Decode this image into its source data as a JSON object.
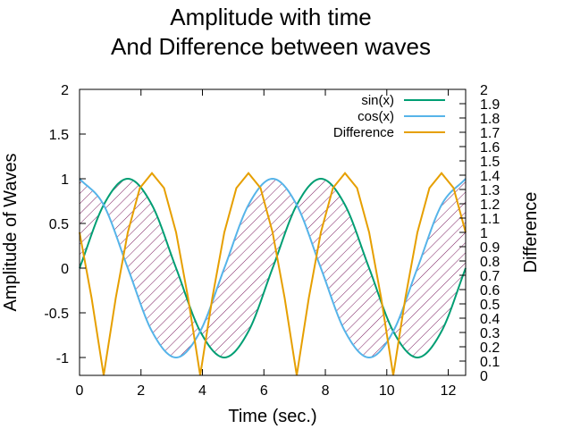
{
  "chart_data": {
    "type": "line",
    "title": "Amplitude with time",
    "subtitle": "And Difference between waves",
    "xlabel": "Time (sec.)",
    "ylabel": "Amplitude of Waves",
    "y2label": "Difference",
    "xlim": [
      0,
      12.566
    ],
    "ylim": [
      -1.2,
      2
    ],
    "y2lim": [
      0,
      2
    ],
    "x_ticks": [
      "0",
      "2",
      "4",
      "6",
      "8",
      "10",
      "12"
    ],
    "y_ticks": [
      "2",
      "1.5",
      "1",
      "0.5",
      "0",
      "-0.5",
      "-1"
    ],
    "y2_ticks": [
      "2",
      "1.9",
      "1.8",
      "1.7",
      "1.6",
      "1.5",
      "1.4",
      "1.3",
      "1.2",
      "1.1",
      "1",
      "0.9",
      "0.8",
      "0.7",
      "0.6",
      "0.5",
      "0.4",
      "0.3",
      "0.2",
      "0.1",
      "0"
    ],
    "grid": false,
    "legend_position": "top-right",
    "fill": "hatched region between sin(x) and cos(x)",
    "series": [
      {
        "name": "sin(x)",
        "axis": "left",
        "color": "#009e73",
        "x": [
          0,
          0.785,
          1.571,
          2.356,
          3.142,
          3.927,
          4.712,
          5.498,
          6.283,
          7.069,
          7.854,
          8.639,
          9.425,
          10.21,
          10.996,
          11.781,
          12.566
        ],
        "values": [
          0,
          0.707,
          1,
          0.707,
          0,
          -0.707,
          -1,
          -0.707,
          0,
          0.707,
          1,
          0.707,
          0,
          -0.707,
          -1,
          -0.707,
          0
        ]
      },
      {
        "name": "cos(x)",
        "axis": "left",
        "color": "#56b4e9",
        "x": [
          0,
          0.785,
          1.571,
          2.356,
          3.142,
          3.927,
          4.712,
          5.498,
          6.283,
          7.069,
          7.854,
          8.639,
          9.425,
          10.21,
          10.996,
          11.781,
          12.566
        ],
        "values": [
          1,
          0.707,
          0,
          -0.707,
          -1,
          -0.707,
          0,
          0.707,
          1,
          0.707,
          0,
          -0.707,
          -1,
          -0.707,
          0,
          0.707,
          1
        ]
      },
      {
        "name": "Difference",
        "axis": "right",
        "color": "#e69f00",
        "x": [
          0,
          0.393,
          0.785,
          1.178,
          1.571,
          1.963,
          2.356,
          2.749,
          3.142,
          3.534,
          3.927,
          4.32,
          4.712,
          5.105,
          5.498,
          5.89,
          6.283,
          6.676,
          7.069,
          7.461,
          7.854,
          8.247,
          8.639,
          9.032,
          9.425,
          9.817,
          10.21,
          10.603,
          10.996,
          11.388,
          11.781,
          12.174,
          12.566
        ],
        "values": [
          1,
          0.54,
          0,
          0.54,
          1,
          1.31,
          1.414,
          1.31,
          1,
          0.54,
          0,
          0.54,
          1,
          1.31,
          1.414,
          1.31,
          1,
          0.54,
          0,
          0.54,
          1,
          1.31,
          1.414,
          1.31,
          1,
          0.54,
          0,
          0.54,
          1,
          1.31,
          1.414,
          1.31,
          1
        ]
      }
    ]
  }
}
